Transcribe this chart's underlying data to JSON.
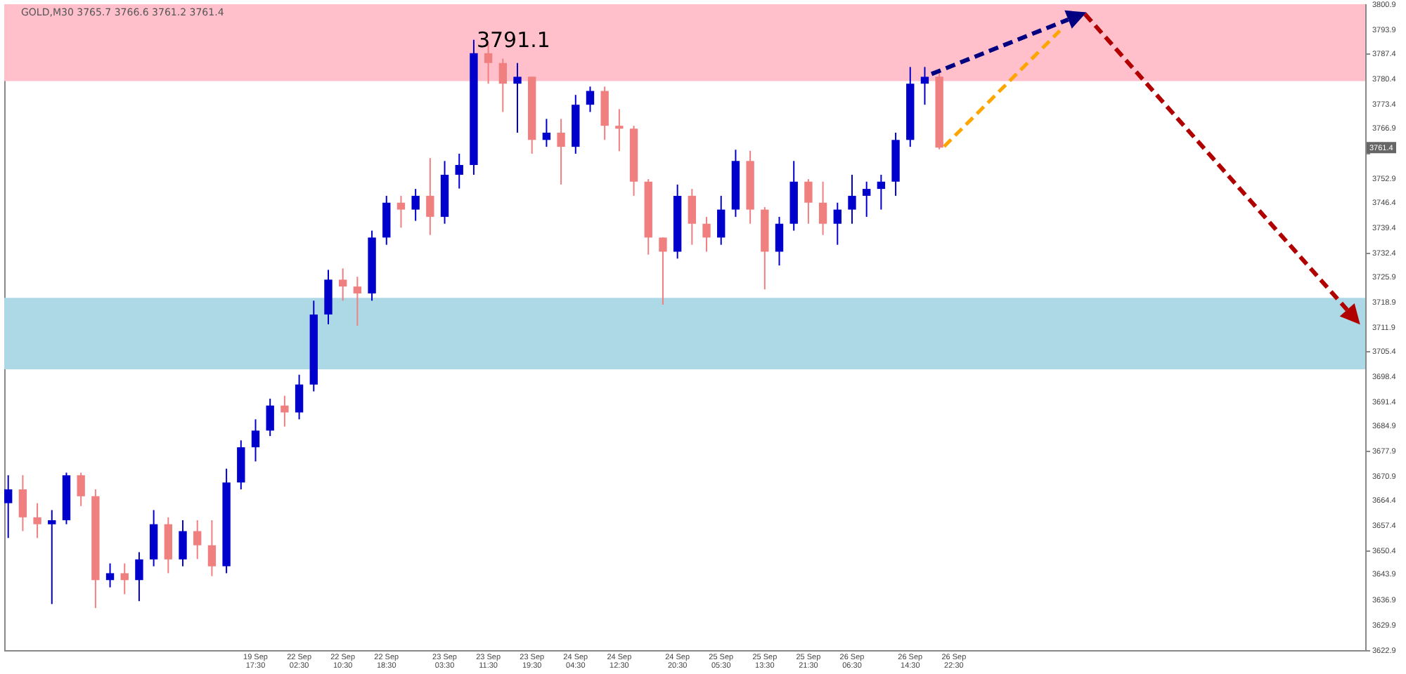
{
  "chart_data": {
    "type": "candlestick",
    "title": "GOLD,M30 3765.7 3766.6 3761.2 3761.4",
    "categories": [
      null,
      null,
      null,
      null,
      null,
      null,
      null,
      null,
      null,
      null,
      null,
      null,
      null,
      null,
      null,
      null,
      null,
      "19 Sep 17:30",
      null,
      null,
      "22 Sep 02:30",
      null,
      null,
      "22 Sep 10:30",
      null,
      null,
      "22 Sep 18:30",
      null,
      null,
      null,
      "23 Sep 03:30",
      null,
      null,
      "23 Sep 11:30",
      null,
      null,
      "23 Sep 19:30",
      null,
      null,
      "24 Sep 04:30",
      null,
      null,
      "24 Sep 12:30",
      null,
      null,
      null,
      "24 Sep 20:30",
      null,
      null,
      "25 Sep 05:30",
      null,
      null,
      "25 Sep 13:30",
      null,
      null,
      "25 Sep 21:30",
      null,
      null,
      "26 Sep 06:30",
      null,
      null,
      null,
      "26 Sep 14:30",
      null,
      null,
      "26 Sep 22:30",
      null,
      null,
      null,
      null,
      null,
      null,
      null,
      null,
      null,
      null,
      null,
      null,
      null,
      null,
      null,
      null,
      null,
      null,
      null,
      null,
      null,
      null,
      null,
      null,
      null,
      null,
      null,
      null
    ],
    "ohlc": [
      [
        3663.4,
        3671.1,
        3653.8,
        3667.2
      ],
      [
        3667.2,
        3671.1,
        3655.7,
        3659.5
      ],
      [
        3659.5,
        3663.4,
        3653.8,
        3657.6
      ],
      [
        3657.6,
        3661.5,
        3635.6,
        3658.7
      ],
      [
        3658.7,
        3671.8,
        3657.6,
        3671.1
      ],
      [
        3671.1,
        3671.8,
        3662.6,
        3665.3
      ],
      [
        3665.3,
        3667.2,
        3634.5,
        3642.2
      ],
      [
        3642.2,
        3646.8,
        3640.2,
        3644.1
      ],
      [
        3644.1,
        3646.8,
        3638.3,
        3642.2
      ],
      [
        3642.2,
        3649.9,
        3636.4,
        3647.9
      ],
      [
        3647.9,
        3661.5,
        3646.0,
        3657.6
      ],
      [
        3657.6,
        3659.5,
        3644.1,
        3647.9
      ],
      [
        3647.9,
        3658.7,
        3646.0,
        3655.7
      ],
      [
        3655.7,
        3658.7,
        3648.0,
        3651.8
      ],
      [
        3651.8,
        3658.7,
        3643.3,
        3646.0
      ],
      [
        3646.0,
        3672.9,
        3644.1,
        3669.1
      ],
      [
        3669.1,
        3680.7,
        3667.2,
        3678.8
      ],
      [
        3678.8,
        3686.5,
        3674.9,
        3683.4
      ],
      [
        3683.4,
        3692.2,
        3681.9,
        3690.3
      ],
      [
        3690.3,
        3693.0,
        3684.5,
        3688.4
      ],
      [
        3688.4,
        3698.8,
        3686.5,
        3696.1
      ],
      [
        3696.1,
        3719.2,
        3694.2,
        3715.4
      ],
      [
        3715.4,
        3727.7,
        3712.7,
        3725.0
      ],
      [
        3725.0,
        3728.1,
        3719.2,
        3723.1
      ],
      [
        3723.1,
        3725.8,
        3712.3,
        3721.2
      ],
      [
        3721.2,
        3738.5,
        3719.2,
        3736.6
      ],
      [
        3736.6,
        3748.1,
        3734.6,
        3746.2
      ],
      [
        3746.2,
        3748.1,
        3739.3,
        3744.3
      ],
      [
        3744.3,
        3750.0,
        3741.2,
        3748.1
      ],
      [
        3748.1,
        3758.5,
        3737.3,
        3742.3
      ],
      [
        3742.3,
        3757.7,
        3740.4,
        3753.9
      ],
      [
        3753.9,
        3759.7,
        3750.1,
        3756.6
      ],
      [
        3756.6,
        3791.1,
        3753.9,
        3787.4
      ],
      [
        3787.4,
        3790.5,
        3779.0,
        3784.7
      ],
      [
        3784.7,
        3785.9,
        3771.2,
        3779.0
      ],
      [
        3779.0,
        3784.7,
        3765.5,
        3780.9
      ],
      [
        3780.9,
        3780.9,
        3759.7,
        3763.5
      ],
      [
        3763.5,
        3769.3,
        3761.6,
        3765.5
      ],
      [
        3765.5,
        3769.3,
        3751.2,
        3761.6
      ],
      [
        3761.6,
        3775.9,
        3759.7,
        3773.2
      ],
      [
        3773.2,
        3778.2,
        3771.2,
        3777.0
      ],
      [
        3777.0,
        3778.2,
        3763.5,
        3767.4
      ],
      [
        3767.4,
        3772.0,
        3760.4,
        3766.6
      ],
      [
        3766.6,
        3767.4,
        3748.1,
        3752.0
      ],
      [
        3752.0,
        3752.7,
        3731.9,
        3736.6
      ],
      [
        3736.6,
        3736.6,
        3718.1,
        3732.7
      ],
      [
        3732.7,
        3751.2,
        3730.8,
        3748.1
      ],
      [
        3748.1,
        3750.0,
        3734.6,
        3740.4
      ],
      [
        3740.4,
        3742.3,
        3732.7,
        3736.6
      ],
      [
        3736.6,
        3748.1,
        3734.6,
        3744.3
      ],
      [
        3744.3,
        3760.8,
        3742.3,
        3757.7
      ],
      [
        3757.7,
        3760.5,
        3740.4,
        3744.3
      ],
      [
        3744.3,
        3745.0,
        3722.3,
        3732.7
      ],
      [
        3732.7,
        3742.3,
        3728.9,
        3740.4
      ],
      [
        3740.4,
        3757.7,
        3738.5,
        3752.0
      ],
      [
        3752.0,
        3752.7,
        3740.4,
        3746.2
      ],
      [
        3746.2,
        3752.0,
        3737.3,
        3740.4
      ],
      [
        3740.4,
        3746.2,
        3734.6,
        3744.3
      ],
      [
        3744.3,
        3753.9,
        3740.4,
        3748.1
      ],
      [
        3748.1,
        3752.0,
        3742.3,
        3750.0
      ],
      [
        3750.0,
        3753.9,
        3744.3,
        3752.0
      ],
      [
        3752.0,
        3765.5,
        3748.1,
        3763.5
      ],
      [
        3763.5,
        3783.6,
        3761.6,
        3779.0
      ],
      [
        3779.0,
        3783.6,
        3773.2,
        3780.9
      ],
      [
        3780.9,
        3782.0,
        3760.9,
        3761.4
      ],
      null,
      null,
      null,
      null,
      null,
      null,
      null,
      null,
      null,
      null,
      null,
      null,
      null,
      null,
      null,
      null,
      null,
      null,
      null,
      null,
      null,
      null,
      null,
      null,
      null,
      null,
      null,
      null,
      null
    ],
    "colors": [
      "#0000cd",
      "#f08080",
      "#f08080",
      "#0000cd",
      "#0000cd",
      "#f08080",
      "#f08080",
      "#0000cd",
      "#f08080",
      "#0000cd",
      "#0000cd",
      "#f08080",
      "#0000cd",
      "#f08080",
      "#f08080",
      "#0000cd",
      "#0000cd",
      "#0000cd",
      "#0000cd",
      "#f08080",
      "#0000cd",
      "#0000cd",
      "#0000cd",
      "#f08080",
      "#f08080",
      "#0000cd",
      "#0000cd",
      "#f08080",
      "#0000cd",
      "#f08080",
      "#0000cd",
      "#0000cd",
      "#0000cd",
      "#f08080",
      "#f08080",
      "#0000cd",
      "#f08080",
      "#0000cd",
      "#f08080",
      "#0000cd",
      "#0000cd",
      "#f08080",
      "#f08080",
      "#f08080",
      "#f08080",
      "#f08080",
      "#0000cd",
      "#f08080",
      "#f08080",
      "#0000cd",
      "#0000cd",
      "#f08080",
      "#f08080",
      "#0000cd",
      "#0000cd",
      "#f08080",
      "#f08080",
      "#0000cd",
      "#0000cd",
      "#0000cd",
      "#0000cd",
      "#0000cd",
      "#0000cd",
      "#0000cd",
      "#f08080",
      null,
      null,
      null,
      null,
      null,
      null,
      null,
      null,
      null,
      null,
      null,
      null,
      null,
      null,
      null,
      null,
      null,
      null,
      null,
      null,
      null,
      null,
      null,
      null,
      null,
      null,
      null,
      null,
      null
    ],
    "bands": [
      {
        "axis": "y",
        "from": 3779.7,
        "to": 3800.9,
        "color": "#ffc0cb"
      },
      {
        "axis": "y",
        "from": 3700.3,
        "to": 3720.0,
        "color": "#add8e6"
      }
    ],
    "annotations": [
      "3791.1",
      "3761.4"
    ],
    "ylim": [
      3622.9,
      3800.9
    ],
    "yticks": [
      3800.9,
      3793.9,
      3787.4,
      3780.4,
      3773.4,
      3766.9,
      {
        "value": 3759.9,
        "label": null
      },
      3752.9,
      3746.4,
      3739.4,
      3732.4,
      3725.9,
      3718.9,
      3711.9,
      3705.4,
      3698.4,
      3691.4,
      3684.9,
      3677.9,
      3670.9,
      3664.4,
      3657.4,
      3650.4,
      3643.9,
      3636.9,
      3629.9,
      3622.9
    ],
    "grid": false
  }
}
